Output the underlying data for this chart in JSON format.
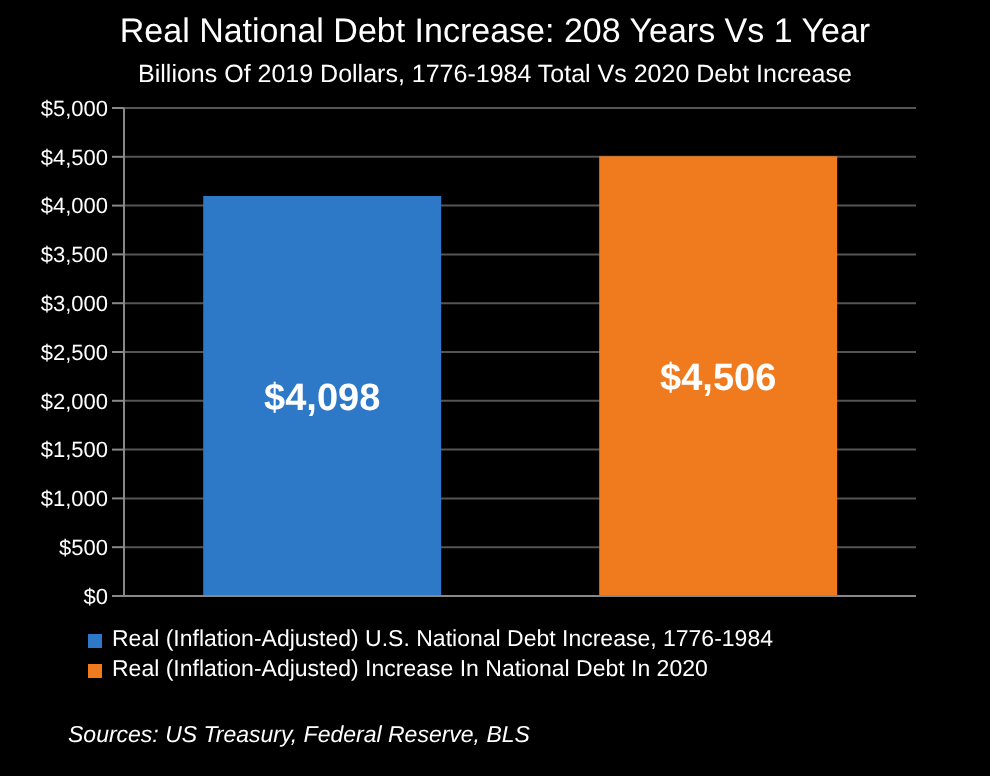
{
  "chart_data": {
    "type": "bar",
    "title": "Real National Debt Increase:  208 Years Vs 1 Year",
    "subtitle": "Billions Of 2019 Dollars, 1776-1984 Total Vs 2020 Debt Increase",
    "categories": [
      null,
      null
    ],
    "series": [
      {
        "name": "Real (Inflation-Adjusted) U.S. National Debt Increase, 1776-1984",
        "color": "#2e78c8",
        "values": [
          4098,
          null
        ],
        "value_labels": [
          "$4,098",
          null
        ]
      },
      {
        "name": "Real (Inflation-Adjusted) Increase In National Debt In 2020",
        "color": "#f07a1e",
        "values": [
          null,
          4506
        ],
        "value_labels": [
          null,
          "$4,506"
        ]
      }
    ],
    "ylim": [
      0,
      5000
    ],
    "yticks": [
      {
        "value": 0,
        "label": "$0"
      },
      {
        "value": 500,
        "label": "$500"
      },
      {
        "value": 1000,
        "label": "$1,000"
      },
      {
        "value": 1500,
        "label": "$1,500"
      },
      {
        "value": 2000,
        "label": "$2,000"
      },
      {
        "value": 2500,
        "label": "$2,500"
      },
      {
        "value": 3000,
        "label": "$3,000"
      },
      {
        "value": 3500,
        "label": "$3,500"
      },
      {
        "value": 4000,
        "label": "$4,000"
      },
      {
        "value": 4500,
        "label": "$4,500"
      },
      {
        "value": 5000,
        "label": "$5,000"
      }
    ],
    "grid": "y",
    "legend": "bottom",
    "annotations": [
      "Sources:  US Treasury, Federal Reserve, BLS"
    ]
  }
}
